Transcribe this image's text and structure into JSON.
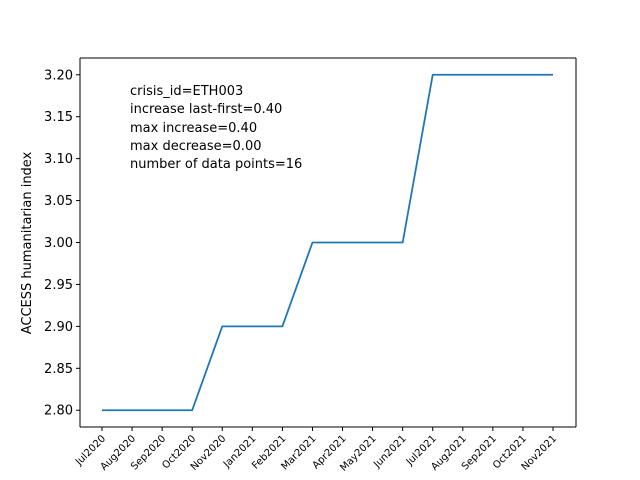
{
  "chart_data": {
    "type": "line",
    "categories": [
      "Jul2020",
      "Aug2020",
      "Sep2020",
      "Oct2020",
      "Nov2020",
      "Jan2021",
      "Feb2021",
      "Mar2021",
      "Apr2021",
      "May2021",
      "Jun2021",
      "Jul2021",
      "Aug2021",
      "Sep2021",
      "Oct2021",
      "Nov2021"
    ],
    "series": [
      {
        "values": [
          2.8,
          2.8,
          2.8,
          2.8,
          2.9,
          2.9,
          2.9,
          3.0,
          3.0,
          3.0,
          3.0,
          3.2,
          3.2,
          3.2,
          3.2,
          3.2
        ]
      }
    ],
    "xlabel": "",
    "ylabel": "ACCESS humanitarian index",
    "ylim": [
      2.78,
      3.22
    ],
    "yticks": [
      "2.80",
      "2.85",
      "2.90",
      "2.95",
      "3.00",
      "3.05",
      "3.10",
      "3.15",
      "3.20"
    ],
    "grid": false,
    "line_color": "#1f77b4",
    "annotations": [
      "crisis_id=ETH003",
      "increase last-first=0.40",
      "max increase=0.40",
      "max decrease=0.00",
      "number of data points=16"
    ]
  }
}
